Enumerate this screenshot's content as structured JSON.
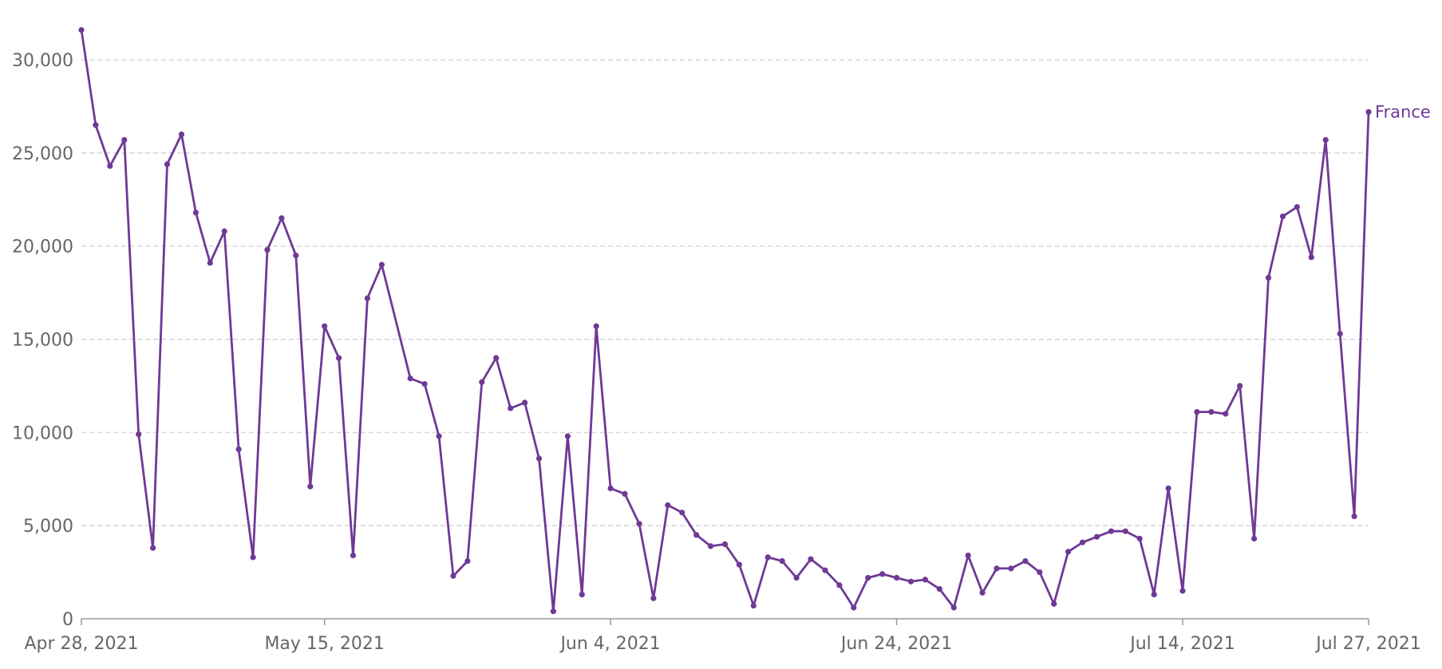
{
  "chart_data": {
    "type": "line",
    "title": "",
    "xlabel": "",
    "ylabel": "",
    "ylim": [
      0,
      32000
    ],
    "y_ticks": [
      0,
      5000,
      10000,
      15000,
      20000,
      25000,
      30000
    ],
    "y_tick_labels": [
      "0",
      "5,000",
      "10,000",
      "15,000",
      "20,000",
      "25,000",
      "30,000"
    ],
    "x_ticks": [
      "2021-04-28",
      "2021-05-15",
      "2021-06-04",
      "2021-06-24",
      "2021-07-14",
      "2021-07-27"
    ],
    "x_tick_labels": [
      "Apr 28, 2021",
      "May 15, 2021",
      "Jun 4, 2021",
      "Jun 24, 2021",
      "Jul 14, 2021",
      "Jul 27, 2021"
    ],
    "grid": "horizontal dashed",
    "color": "#6f3996",
    "series": [
      {
        "name": "France",
        "x": [
          "2021-04-28",
          "2021-04-29",
          "2021-04-30",
          "2021-05-01",
          "2021-05-02",
          "2021-05-03",
          "2021-05-04",
          "2021-05-05",
          "2021-05-06",
          "2021-05-07",
          "2021-05-08",
          "2021-05-09",
          "2021-05-10",
          "2021-05-11",
          "2021-05-12",
          "2021-05-13",
          "2021-05-14",
          "2021-05-15",
          "2021-05-16",
          "2021-05-17",
          "2021-05-18",
          "2021-05-19",
          "2021-05-21",
          "2021-05-22",
          "2021-05-23",
          "2021-05-24",
          "2021-05-25",
          "2021-05-26",
          "2021-05-27",
          "2021-05-28",
          "2021-05-29",
          "2021-05-30",
          "2021-05-31",
          "2021-06-01",
          "2021-06-02",
          "2021-06-03",
          "2021-06-04",
          "2021-06-05",
          "2021-06-06",
          "2021-06-07",
          "2021-06-08",
          "2021-06-09",
          "2021-06-10",
          "2021-06-11",
          "2021-06-12",
          "2021-06-13",
          "2021-06-14",
          "2021-06-15",
          "2021-06-16",
          "2021-06-17",
          "2021-06-18",
          "2021-06-19",
          "2021-06-20",
          "2021-06-21",
          "2021-06-22",
          "2021-06-23",
          "2021-06-24",
          "2021-06-25",
          "2021-06-26",
          "2021-06-27",
          "2021-06-28",
          "2021-06-29",
          "2021-06-30",
          "2021-07-01",
          "2021-07-02",
          "2021-07-03",
          "2021-07-04",
          "2021-07-05",
          "2021-07-06",
          "2021-07-07",
          "2021-07-08",
          "2021-07-09",
          "2021-07-10",
          "2021-07-11",
          "2021-07-12",
          "2021-07-13",
          "2021-07-14",
          "2021-07-15",
          "2021-07-16",
          "2021-07-17",
          "2021-07-18",
          "2021-07-19",
          "2021-07-20",
          "2021-07-21",
          "2021-07-22",
          "2021-07-23",
          "2021-07-24",
          "2021-07-25",
          "2021-07-26",
          "2021-07-27"
        ],
        "y": [
          31600,
          26500,
          24300,
          25700,
          9900,
          3800,
          24400,
          26000,
          21800,
          19100,
          20800,
          9100,
          3300,
          19800,
          21500,
          19500,
          7100,
          15700,
          14000,
          3400,
          17200,
          19000,
          12900,
          12600,
          9800,
          2300,
          3100,
          12700,
          14000,
          11300,
          11600,
          8600,
          400,
          9800,
          1300,
          15700,
          7000,
          6700,
          5100,
          1100,
          6100,
          5700,
          4500,
          3900,
          4000,
          2900,
          700,
          3300,
          3100,
          2200,
          3200,
          2600,
          1800,
          600,
          2200,
          2400,
          2200,
          2000,
          2100,
          1600,
          600,
          3400,
          1400,
          2700,
          2700,
          3100,
          2500,
          800,
          3600,
          4100,
          4400,
          4700,
          4700,
          4300,
          1300,
          7000,
          1500,
          11100,
          11100,
          11000,
          12500,
          4300,
          18300,
          21600,
          22100,
          19400,
          25700,
          15300,
          5500,
          27200
        ]
      }
    ]
  }
}
